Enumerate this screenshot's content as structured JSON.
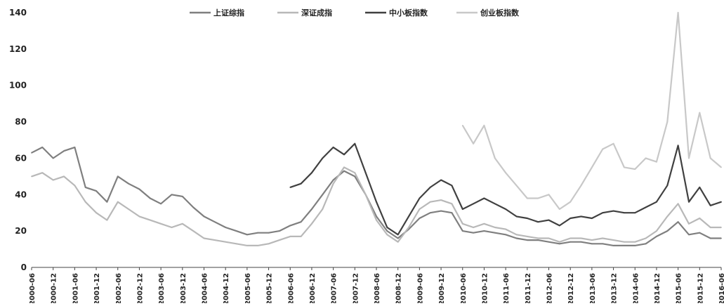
{
  "chart_data": {
    "type": "line",
    "title": "",
    "xlabel": "",
    "ylabel": "",
    "ylim": [
      0,
      140
    ],
    "yticks": [
      "0",
      "20",
      "40",
      "60",
      "80",
      "100",
      "120",
      "140"
    ],
    "legend_position": "top-center",
    "grid": false,
    "x_labels": [
      "2000-06",
      "2000-12",
      "2001-06",
      "2001-12",
      "2002-06",
      "2002-12",
      "2003-06",
      "2003-12",
      "2004-06",
      "2004-12",
      "2005-06",
      "2005-12",
      "2006-06",
      "2006-12",
      "2007-06",
      "2007-12",
      "2008-06",
      "2008-12",
      "2009-06",
      "2009-12",
      "2010-06",
      "2010-12",
      "2011-06",
      "2011-12",
      "2012-06",
      "2012-12",
      "2013-06",
      "2013-12",
      "2014-06",
      "2014-12",
      "2015-06",
      "2015-12",
      "2016-06"
    ],
    "series": [
      {
        "name": "上证综指",
        "color": "#7f7f7f",
        "points": [
          [
            "2000-06",
            63
          ],
          [
            "2000-09",
            66
          ],
          [
            "2000-12",
            60
          ],
          [
            "2001-03",
            64
          ],
          [
            "2001-06",
            66
          ],
          [
            "2001-09",
            44
          ],
          [
            "2001-12",
            42
          ],
          [
            "2002-03",
            36
          ],
          [
            "2002-06",
            50
          ],
          [
            "2002-09",
            46
          ],
          [
            "2002-12",
            43
          ],
          [
            "2003-03",
            38
          ],
          [
            "2003-06",
            35
          ],
          [
            "2003-09",
            40
          ],
          [
            "2003-12",
            39
          ],
          [
            "2004-03",
            33
          ],
          [
            "2004-06",
            28
          ],
          [
            "2004-09",
            25
          ],
          [
            "2004-12",
            22
          ],
          [
            "2005-03",
            20
          ],
          [
            "2005-06",
            18
          ],
          [
            "2005-09",
            19
          ],
          [
            "2005-12",
            19
          ],
          [
            "2006-03",
            20
          ],
          [
            "2006-06",
            23
          ],
          [
            "2006-09",
            25
          ],
          [
            "2006-12",
            32
          ],
          [
            "2007-03",
            40
          ],
          [
            "2007-06",
            48
          ],
          [
            "2007-09",
            53
          ],
          [
            "2007-12",
            50
          ],
          [
            "2008-03",
            40
          ],
          [
            "2008-06",
            28
          ],
          [
            "2008-09",
            20
          ],
          [
            "2008-12",
            16
          ],
          [
            "2009-03",
            21
          ],
          [
            "2009-06",
            27
          ],
          [
            "2009-09",
            30
          ],
          [
            "2009-12",
            31
          ],
          [
            "2010-03",
            30
          ],
          [
            "2010-06",
            20
          ],
          [
            "2010-09",
            19
          ],
          [
            "2010-12",
            20
          ],
          [
            "2011-03",
            19
          ],
          [
            "2011-06",
            18
          ],
          [
            "2011-09",
            16
          ],
          [
            "2011-12",
            15
          ],
          [
            "2012-03",
            15
          ],
          [
            "2012-06",
            14
          ],
          [
            "2012-09",
            13
          ],
          [
            "2012-12",
            14
          ],
          [
            "2013-03",
            14
          ],
          [
            "2013-06",
            13
          ],
          [
            "2013-09",
            13
          ],
          [
            "2013-12",
            12
          ],
          [
            "2014-03",
            12
          ],
          [
            "2014-06",
            12
          ],
          [
            "2014-09",
            13
          ],
          [
            "2014-12",
            17
          ],
          [
            "2015-03",
            20
          ],
          [
            "2015-06",
            25
          ],
          [
            "2015-09",
            18
          ],
          [
            "2015-12",
            19
          ],
          [
            "2016-03",
            16
          ],
          [
            "2016-06",
            16
          ]
        ]
      },
      {
        "name": "深证成指",
        "color": "#b8b8b8",
        "points": [
          [
            "2000-06",
            50
          ],
          [
            "2000-09",
            52
          ],
          [
            "2000-12",
            48
          ],
          [
            "2001-03",
            50
          ],
          [
            "2001-06",
            45
          ],
          [
            "2001-09",
            36
          ],
          [
            "2001-12",
            30
          ],
          [
            "2002-03",
            26
          ],
          [
            "2002-06",
            36
          ],
          [
            "2002-09",
            32
          ],
          [
            "2002-12",
            28
          ],
          [
            "2003-03",
            26
          ],
          [
            "2003-06",
            24
          ],
          [
            "2003-09",
            22
          ],
          [
            "2003-12",
            24
          ],
          [
            "2004-03",
            20
          ],
          [
            "2004-06",
            16
          ],
          [
            "2004-09",
            15
          ],
          [
            "2004-12",
            14
          ],
          [
            "2005-03",
            13
          ],
          [
            "2005-06",
            12
          ],
          [
            "2005-09",
            12
          ],
          [
            "2005-12",
            13
          ],
          [
            "2006-03",
            15
          ],
          [
            "2006-06",
            17
          ],
          [
            "2006-09",
            17
          ],
          [
            "2006-12",
            24
          ],
          [
            "2007-03",
            32
          ],
          [
            "2007-06",
            46
          ],
          [
            "2007-09",
            55
          ],
          [
            "2007-12",
            52
          ],
          [
            "2008-03",
            40
          ],
          [
            "2008-06",
            26
          ],
          [
            "2008-09",
            18
          ],
          [
            "2008-12",
            14
          ],
          [
            "2009-03",
            22
          ],
          [
            "2009-06",
            32
          ],
          [
            "2009-09",
            36
          ],
          [
            "2009-12",
            37
          ],
          [
            "2010-03",
            35
          ],
          [
            "2010-06",
            24
          ],
          [
            "2010-09",
            22
          ],
          [
            "2010-12",
            24
          ],
          [
            "2011-03",
            22
          ],
          [
            "2011-06",
            21
          ],
          [
            "2011-09",
            18
          ],
          [
            "2011-12",
            17
          ],
          [
            "2012-03",
            16
          ],
          [
            "2012-06",
            16
          ],
          [
            "2012-09",
            14
          ],
          [
            "2012-12",
            16
          ],
          [
            "2013-03",
            16
          ],
          [
            "2013-06",
            15
          ],
          [
            "2013-09",
            16
          ],
          [
            "2013-12",
            15
          ],
          [
            "2014-03",
            14
          ],
          [
            "2014-06",
            14
          ],
          [
            "2014-09",
            16
          ],
          [
            "2014-12",
            20
          ],
          [
            "2015-03",
            28
          ],
          [
            "2015-06",
            35
          ],
          [
            "2015-09",
            24
          ],
          [
            "2015-12",
            27
          ],
          [
            "2016-03",
            22
          ],
          [
            "2016-06",
            22
          ]
        ]
      },
      {
        "name": "中小板指数",
        "color": "#404040",
        "points": [
          [
            "2006-06",
            44
          ],
          [
            "2006-09",
            46
          ],
          [
            "2006-12",
            52
          ],
          [
            "2007-03",
            60
          ],
          [
            "2007-06",
            66
          ],
          [
            "2007-09",
            62
          ],
          [
            "2007-12",
            68
          ],
          [
            "2008-03",
            52
          ],
          [
            "2008-06",
            36
          ],
          [
            "2008-09",
            22
          ],
          [
            "2008-12",
            18
          ],
          [
            "2009-03",
            28
          ],
          [
            "2009-06",
            38
          ],
          [
            "2009-09",
            44
          ],
          [
            "2009-12",
            48
          ],
          [
            "2010-03",
            45
          ],
          [
            "2010-06",
            32
          ],
          [
            "2010-09",
            35
          ],
          [
            "2010-12",
            38
          ],
          [
            "2011-03",
            35
          ],
          [
            "2011-06",
            32
          ],
          [
            "2011-09",
            28
          ],
          [
            "2011-12",
            27
          ],
          [
            "2012-03",
            25
          ],
          [
            "2012-06",
            26
          ],
          [
            "2012-09",
            23
          ],
          [
            "2012-12",
            27
          ],
          [
            "2013-03",
            28
          ],
          [
            "2013-06",
            27
          ],
          [
            "2013-09",
            30
          ],
          [
            "2013-12",
            31
          ],
          [
            "2014-03",
            30
          ],
          [
            "2014-06",
            30
          ],
          [
            "2014-09",
            33
          ],
          [
            "2014-12",
            36
          ],
          [
            "2015-03",
            45
          ],
          [
            "2015-06",
            67
          ],
          [
            "2015-09",
            36
          ],
          [
            "2015-12",
            44
          ],
          [
            "2016-03",
            34
          ],
          [
            "2016-06",
            36
          ]
        ]
      },
      {
        "name": "创业板指数",
        "color": "#c8c8c8",
        "points": [
          [
            "2010-06",
            78
          ],
          [
            "2010-09",
            68
          ],
          [
            "2010-12",
            78
          ],
          [
            "2011-03",
            60
          ],
          [
            "2011-06",
            52
          ],
          [
            "2011-09",
            45
          ],
          [
            "2011-12",
            38
          ],
          [
            "2012-03",
            38
          ],
          [
            "2012-06",
            40
          ],
          [
            "2012-09",
            32
          ],
          [
            "2012-12",
            36
          ],
          [
            "2013-03",
            45
          ],
          [
            "2013-06",
            55
          ],
          [
            "2013-09",
            65
          ],
          [
            "2013-12",
            68
          ],
          [
            "2014-03",
            55
          ],
          [
            "2014-06",
            54
          ],
          [
            "2014-09",
            60
          ],
          [
            "2014-12",
            58
          ],
          [
            "2015-03",
            80
          ],
          [
            "2015-06",
            140
          ],
          [
            "2015-09",
            60
          ],
          [
            "2015-12",
            85
          ],
          [
            "2016-03",
            60
          ],
          [
            "2016-06",
            55
          ]
        ]
      }
    ]
  }
}
